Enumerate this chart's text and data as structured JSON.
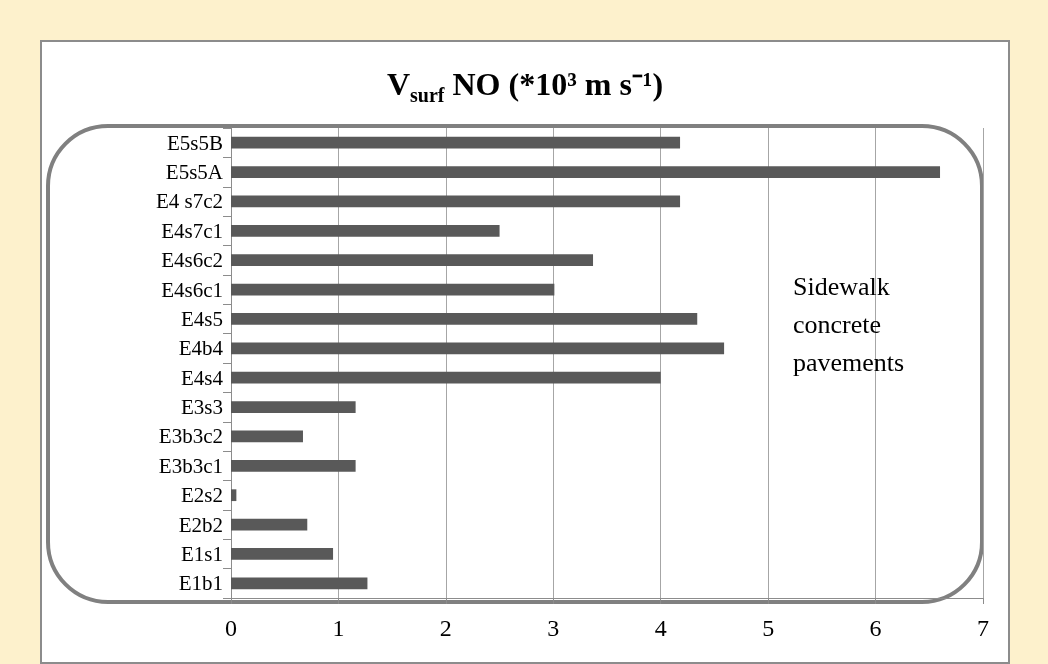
{
  "chart_data": {
    "type": "bar",
    "orientation": "horizontal",
    "title": "V$_{surf}$ NO (*10³ m s⁻¹)",
    "categories": [
      "E5s5B",
      "E5s5A",
      "E4 s7c2",
      "E4s7c1",
      "E4s6c2",
      "E4s6c1",
      "E4s5",
      "E4b4",
      "E4s4",
      "E3s3",
      "E3b3c2",
      "E3b3c1",
      "E2s2",
      "E2b2",
      "E1s1",
      "E1b1"
    ],
    "values": [
      4.18,
      6.6,
      4.18,
      2.5,
      3.37,
      3.01,
      4.34,
      4.59,
      4.0,
      1.16,
      0.67,
      1.16,
      0.05,
      0.71,
      0.95,
      1.27
    ],
    "color": "#595959",
    "xlim": [
      0,
      7
    ],
    "xticks": [
      0,
      1,
      2,
      3,
      4,
      5,
      6,
      7
    ],
    "grid": "x",
    "annotations": [
      "Sidewalk concrete pavements"
    ]
  }
}
